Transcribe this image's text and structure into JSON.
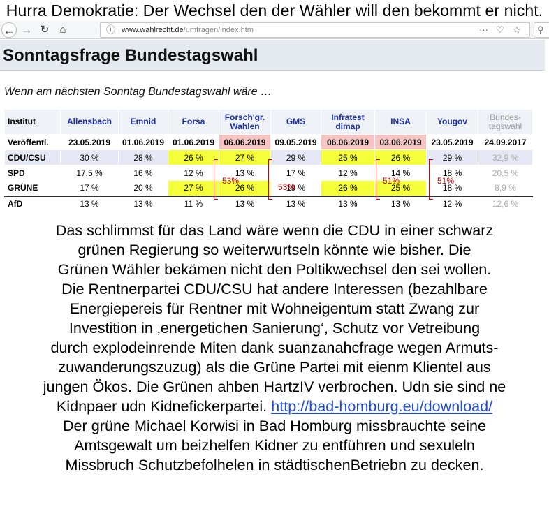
{
  "caption_top": "Hurra Demokratie: Der Wechsel den der Wähler will den bekommt er nicht.",
  "browser": {
    "url_domain": "www.wahlrecht.de",
    "url_path": "/umfragen/index.htm",
    "url_more": "···"
  },
  "page": {
    "headline": "Sonntagsfrage Bundestagswahl",
    "subtitle": "Wenn am nächsten Sonntag Bundestagswahl wäre …"
  },
  "table": {
    "corner": "Institut",
    "institutes": [
      {
        "line1": "Allensbach",
        "line2": ""
      },
      {
        "line1": "Emnid",
        "line2": ""
      },
      {
        "line1": "Forsa",
        "line2": ""
      },
      {
        "line1": "Forsch'gr.",
        "line2": "Wahlen"
      },
      {
        "line1": "GMS",
        "line2": ""
      },
      {
        "line1": "Infratest",
        "line2": "dimap"
      },
      {
        "line1": "INSA",
        "line2": ""
      },
      {
        "line1": "Yougov",
        "line2": ""
      },
      {
        "line1": "Bundes-",
        "line2": "tagswahl"
      }
    ],
    "rows": [
      {
        "label": "Veröffentl.",
        "values": [
          "23.05.2019",
          "01.06.2019",
          "01.06.2019",
          "06.06.2019",
          "09.05.2019",
          "06.06.2019",
          "03.06.2019",
          "23.05.2019",
          "24.09.2017"
        ]
      },
      {
        "label": "CDU/CSU",
        "values": [
          "30 %",
          "28 %",
          "26 %",
          "27 %",
          "29 %",
          "25 %",
          "26 %",
          "29 %",
          "32,9 %"
        ]
      },
      {
        "label": "SPD",
        "values": [
          "17,5 %",
          "16 %",
          "12 %",
          "13 %",
          "17 %",
          "12 %",
          "14 %",
          "18 %",
          "20,5 %"
        ]
      },
      {
        "label": "GRÜNE",
        "values": [
          "17 %",
          "20 %",
          "27 %",
          "26 %",
          "19 %",
          "26 %",
          "25 %",
          "18 %",
          "8,9 %"
        ]
      },
      {
        "label": "AfD",
        "values": [
          "13 %",
          "13 %",
          "11 %",
          "13 %",
          "13 %",
          "13 %",
          "13 %",
          "12 %",
          "12,6 %"
        ]
      }
    ]
  },
  "annotations": [
    "53%",
    "53%",
    "51%",
    "51%"
  ],
  "body_text": {
    "lines": [
      "Das schlimmst für das Land wäre wenn die CDU in einer schwarz",
      "grünen Regierung so weiterwurtseln könnte wie bisher. Die",
      "Grünen Wähler bekämen  nicht den Poltikwechsel den sei wollen.",
      "Die Rentnerpartei CDU/CSU hat andere Interessen (bezahlbare",
      "Energiepereis für Rentner mit Wohneigentum statt Zwang zur",
      "Investition in ‚energetichen Sanierung‘, Schutz vor Vetreibung",
      "durch explodeinrende Miten dank suanzanahcfrage wegen Armuts-",
      "zuwanderungszuzug) als die Grüne Partei mit eienm Klientel aus",
      "jungen Ökos. Die Grünen ahben HartzIV verbrochen. Udn sie sind ne"
    ],
    "link_line_prefix": "Kidnpaer udn Kidnefickerpartei. ",
    "link": "http://bad-homburg.eu/download/",
    "lines_after": [
      "Der grüne Michael Korwisi in Bad Homburg missbrauchte seine",
      "Amtsgewalt um beizhelfen Kidner zu entführen und sexuleln",
      "Missbruch Schutzbefolhelen in städtischenBetriebn zu decken."
    ]
  }
}
